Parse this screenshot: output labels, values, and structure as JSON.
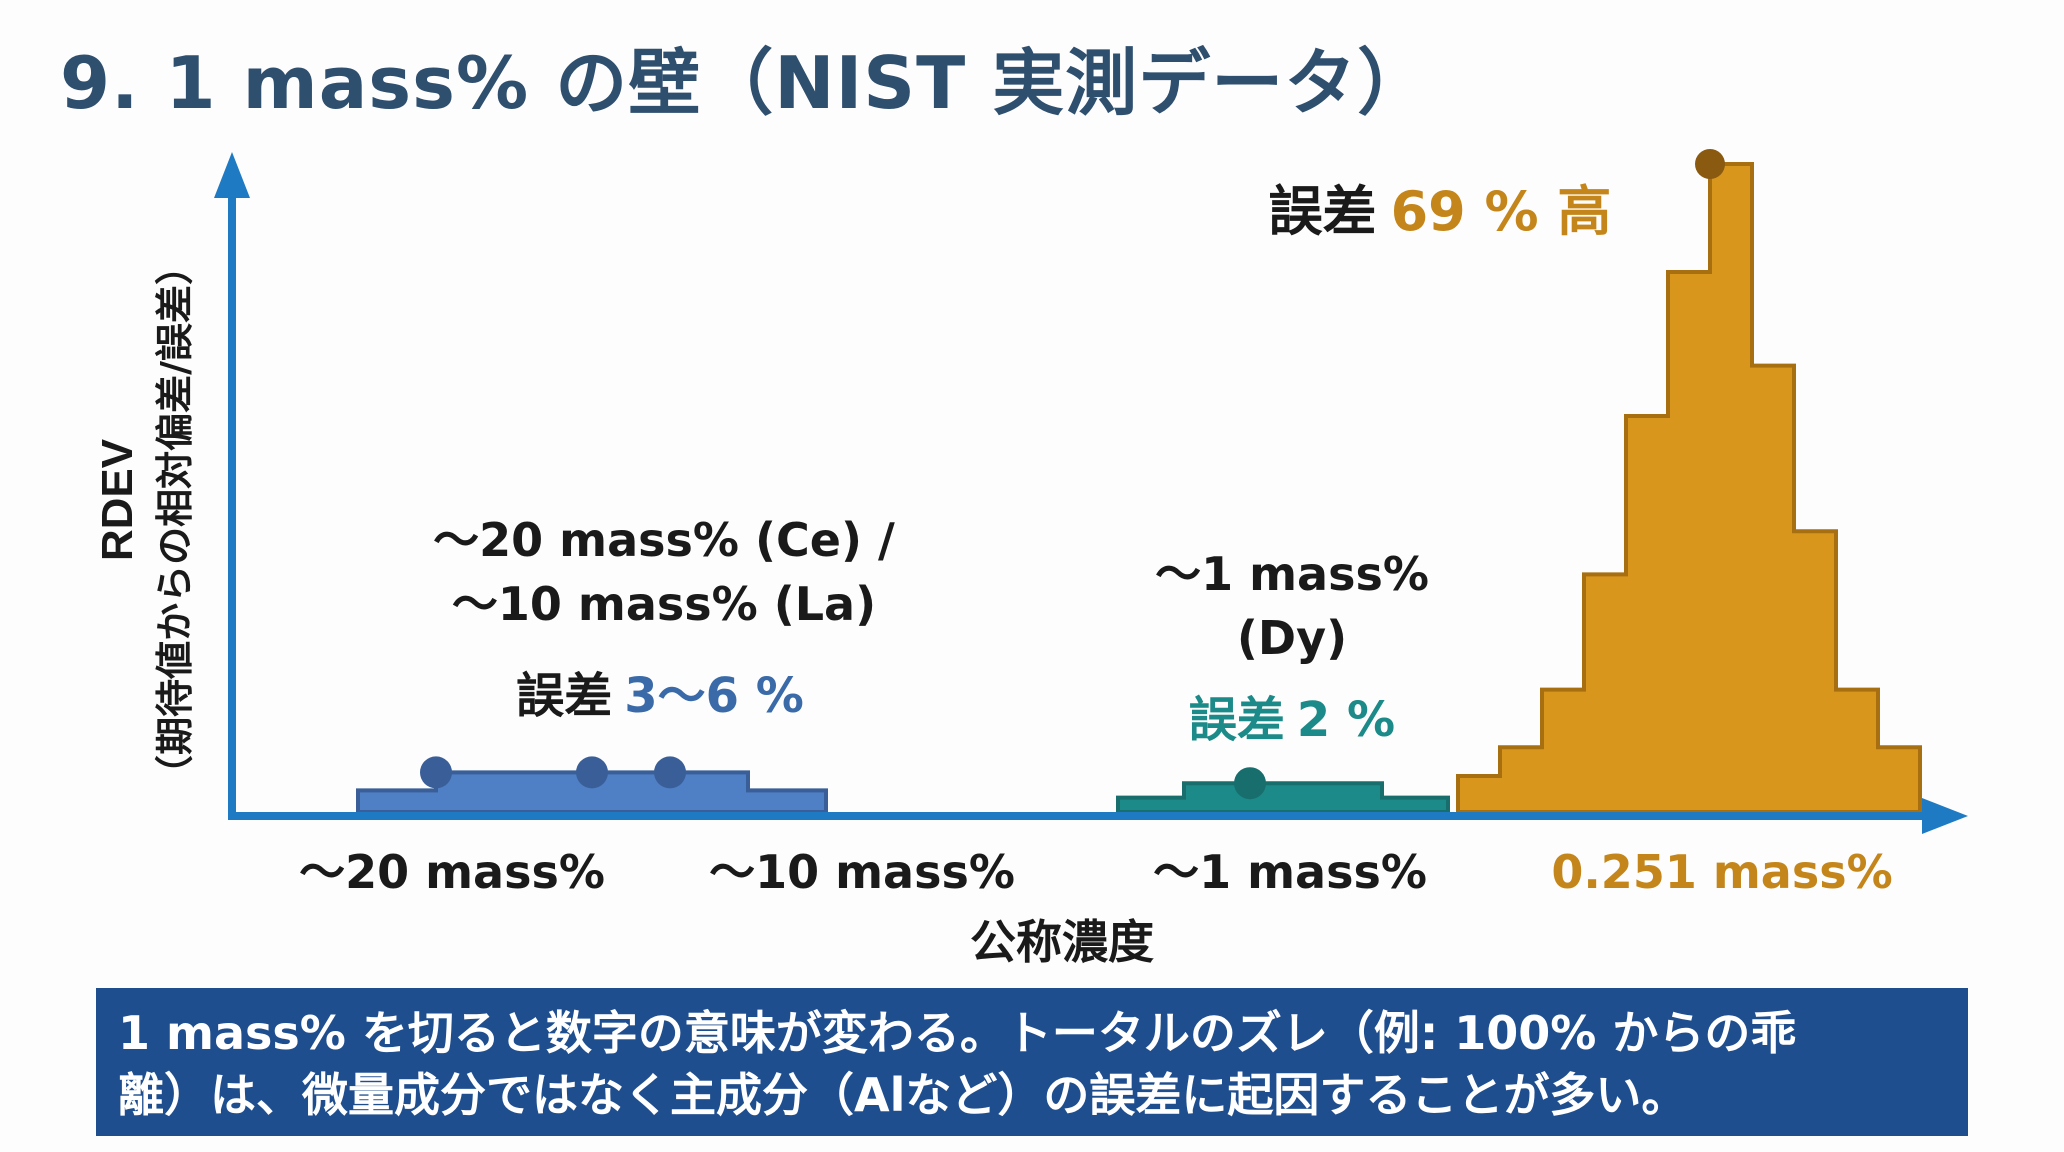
{
  "title": "9. 1 mass% の壁（NIST 実測データ）",
  "colors": {
    "title": "#2f4f6f",
    "axis": "#1f7ac4",
    "blue_fill": "#4f7fc4",
    "blue_stroke": "#3a5f98",
    "teal_fill": "#1c8a88",
    "teal_stroke": "#176e6d",
    "orange_fill": "#d8961c",
    "orange_stroke": "#a86f10",
    "text_dark": "#1a1a1a",
    "footer_bg": "#1f4e8f"
  },
  "chart_data": {
    "type": "area",
    "xlabel": "公称濃度",
    "ylabel": "RDEV",
    "ylabel_sub": "（期待値からの相対偏差/誤差）",
    "x_tick_labels": [
      "〜20 mass%",
      "〜10 mass%",
      "〜1 mass%",
      "0.251 mass%"
    ],
    "groups": [
      {
        "name": "〜20 mass% (Ce) / 〜10 mass% (La)",
        "label_lines": [
          "〜20 mass% (Ce) /",
          "〜10 mass% (La)"
        ],
        "error_prefix": "誤差",
        "error_value": "3〜6 %",
        "values": [
          0.3,
          0.55,
          0.55,
          0.55,
          0.55,
          0.3
        ],
        "markers": [
          0.55,
          0.55,
          0.55
        ]
      },
      {
        "name": "〜1 mass% (Dy)",
        "label_lines": [
          "〜1 mass%",
          "(Dy)"
        ],
        "error_prefix": "誤差",
        "error_value": "2 %",
        "values": [
          0.2,
          0.4,
          0.4,
          0.4,
          0.2
        ],
        "markers": [
          0.4
        ]
      },
      {
        "name": "0.251 mass%",
        "error_prefix": "誤差",
        "error_value": "69 % 高",
        "values": [
          0.5,
          0.9,
          1.7,
          3.3,
          5.5,
          7.5,
          9.0,
          6.2,
          3.9,
          1.7,
          0.9
        ],
        "markers": [
          9.0
        ]
      }
    ]
  },
  "footer": {
    "line1": "1 mass% を切ると数字の意味が変わる。トータルのズレ（例: 100% からの乖",
    "line2": "離）は、微量成分ではなく主成分（Alなど）の誤差に起因することが多い。"
  }
}
